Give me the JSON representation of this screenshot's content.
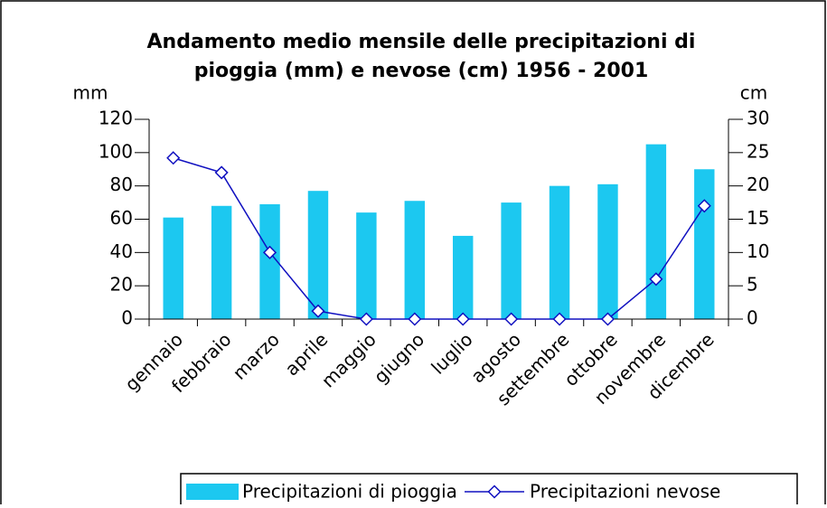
{
  "chart_data": {
    "type": "bar",
    "title": [
      "Andamento medio mensile delle precipitazioni di",
      "pioggia (mm) e nevose (cm) 1956 - 2001"
    ],
    "y_label": "mm",
    "y2_label": "cm",
    "categories": [
      "gennaio",
      "febbraio",
      "marzo",
      "aprile",
      "maggio",
      "giugno",
      "luglio",
      "agosto",
      "settembre",
      "ottobre",
      "novembre",
      "dicembre"
    ],
    "series": [
      {
        "name": "Precipitazioni di pioggia",
        "type": "bar",
        "axis": "y",
        "color": "#1cc8f0",
        "values": [
          61,
          68,
          69,
          77,
          64,
          71,
          50,
          70,
          80,
          81,
          105,
          90
        ]
      },
      {
        "name": "Precipitazioni nevose",
        "type": "line",
        "axis": "y2",
        "color": "#1010c0",
        "values": [
          24.2,
          22,
          10,
          1.2,
          0,
          0,
          0,
          0,
          0,
          0,
          6,
          17
        ]
      }
    ],
    "ylim": [
      0,
      120
    ],
    "yticks": [
      0,
      20,
      40,
      60,
      80,
      100,
      120
    ],
    "y2lim": [
      0,
      30
    ],
    "y2ticks": [
      0,
      5,
      10,
      15,
      20,
      25,
      30
    ],
    "legend": "bottom"
  }
}
